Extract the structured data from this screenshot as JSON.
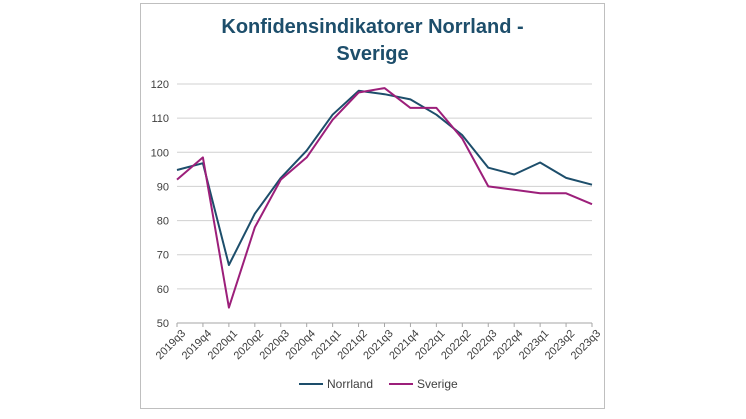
{
  "chart_data": {
    "type": "line",
    "title_lines": [
      "Konfidensindikatorer Norrland -",
      "Sverige"
    ],
    "categories": [
      "2019q3",
      "2019q4",
      "2020q1",
      "2020q2",
      "2020q3",
      "2020q4",
      "2021q1",
      "2021q2",
      "2021q3",
      "2021q4",
      "2022q1",
      "2022q2",
      "2022q3",
      "2022q4",
      "2023q1",
      "2023q2",
      "2023q3"
    ],
    "series": [
      {
        "name": "Norrland",
        "color": "#1d4e6b",
        "values": [
          94.8,
          96.8,
          67,
          82,
          92.5,
          100.5,
          111,
          118,
          117,
          115.5,
          111,
          105,
          95.5,
          93.5,
          97,
          92.5,
          90.5
        ]
      },
      {
        "name": "Sverige",
        "color": "#9c1f7a",
        "values": [
          92,
          98.5,
          54.5,
          78,
          92,
          98.5,
          109.5,
          117.5,
          118.8,
          113,
          113,
          104,
          90,
          89,
          88,
          88,
          84.8
        ]
      }
    ],
    "ylim": [
      50,
      120
    ],
    "yticks": [
      50,
      60,
      70,
      80,
      90,
      100,
      110,
      120
    ],
    "grid": true,
    "legend_position": "bottom"
  },
  "colors": {
    "title": "#1d4e6b",
    "grid": "#d0d0d0",
    "axis": "#a6a6a6"
  }
}
